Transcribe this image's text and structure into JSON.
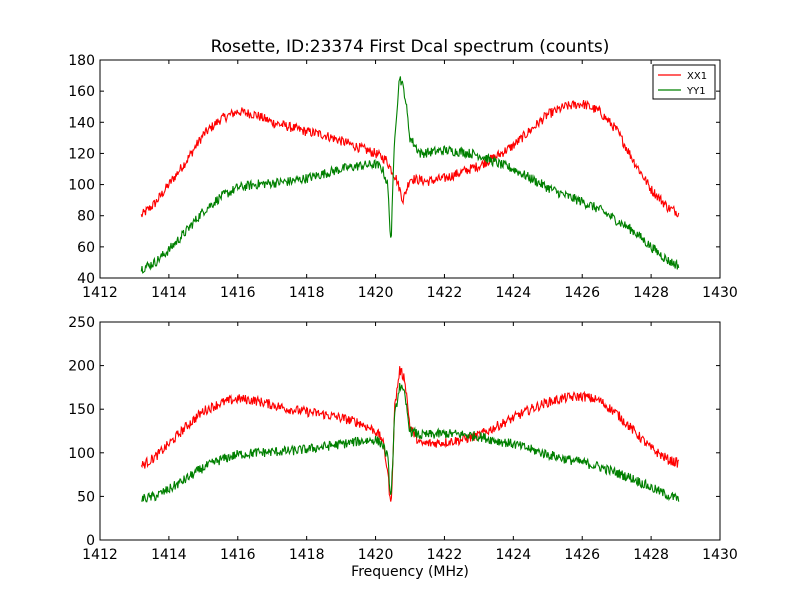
{
  "figure": {
    "title": "Rosette, ID:23374 First Dcal spectrum (counts)",
    "xlabel": "Frequency (MHz)",
    "colors": {
      "XX1": "#ff0000",
      "YY1": "#008000"
    }
  },
  "chart_data": [
    {
      "type": "line",
      "title": "Rosette, ID:23374 First Dcal spectrum (counts)",
      "xlabel": "",
      "ylabel": "",
      "xlim": [
        1412,
        1430
      ],
      "ylim": [
        40,
        180
      ],
      "xticks": [
        1412,
        1414,
        1416,
        1418,
        1420,
        1422,
        1424,
        1426,
        1428,
        1430
      ],
      "yticks": [
        40,
        60,
        80,
        100,
        120,
        140,
        160,
        180
      ],
      "grid": false,
      "legend": {
        "placement": "top-right",
        "entries": [
          "XX1",
          "YY1"
        ]
      },
      "series": [
        {
          "name": "XX1",
          "color": "#ff0000",
          "x": [
            1413.2,
            1413.6,
            1414.0,
            1414.5,
            1415.0,
            1415.5,
            1416.0,
            1416.5,
            1417.0,
            1417.5,
            1418.0,
            1418.5,
            1419.0,
            1419.5,
            1420.0,
            1420.3,
            1420.6,
            1420.8,
            1421.0,
            1421.5,
            1422.0,
            1422.5,
            1423.0,
            1423.5,
            1424.0,
            1424.5,
            1425.0,
            1425.5,
            1426.0,
            1426.5,
            1427.0,
            1427.5,
            1428.0,
            1428.5,
            1428.8
          ],
          "y": [
            80,
            88,
            100,
            115,
            132,
            142,
            147,
            145,
            140,
            137,
            134,
            132,
            128,
            124,
            120,
            116,
            104,
            90,
            104,
            102,
            104,
            108,
            112,
            118,
            125,
            135,
            145,
            150,
            152,
            147,
            135,
            115,
            97,
            85,
            82
          ]
        },
        {
          "name": "YY1",
          "color": "#008000",
          "x": [
            1413.2,
            1413.6,
            1414.0,
            1414.5,
            1415.0,
            1415.5,
            1416.0,
            1416.5,
            1417.0,
            1417.5,
            1418.0,
            1418.5,
            1419.0,
            1419.5,
            1420.0,
            1420.2,
            1420.35,
            1420.45,
            1420.55,
            1420.7,
            1420.85,
            1421.0,
            1421.3,
            1422.0,
            1422.5,
            1423.0,
            1423.5,
            1424.0,
            1424.5,
            1425.0,
            1425.5,
            1426.0,
            1426.5,
            1427.0,
            1427.5,
            1428.0,
            1428.5,
            1428.8
          ],
          "y": [
            46,
            50,
            58,
            70,
            83,
            92,
            98,
            100,
            101,
            102,
            104,
            107,
            110,
            112,
            113,
            110,
            100,
            62,
            130,
            170,
            158,
            130,
            120,
            122,
            121,
            119,
            114,
            110,
            104,
            98,
            93,
            89,
            84,
            77,
            70,
            60,
            51,
            48
          ]
        }
      ]
    },
    {
      "type": "line",
      "title": "",
      "xlabel": "Frequency (MHz)",
      "ylabel": "",
      "xlim": [
        1412,
        1430
      ],
      "ylim": [
        0,
        250
      ],
      "xticks": [
        1412,
        1414,
        1416,
        1418,
        1420,
        1422,
        1424,
        1426,
        1428,
        1430
      ],
      "yticks": [
        0,
        50,
        100,
        150,
        200,
        250
      ],
      "grid": false,
      "series": [
        {
          "name": "XX1",
          "color": "#ff0000",
          "x": [
            1413.2,
            1413.6,
            1414.0,
            1414.5,
            1415.0,
            1415.5,
            1416.0,
            1416.5,
            1417.0,
            1417.5,
            1418.0,
            1418.5,
            1419.0,
            1419.5,
            1420.0,
            1420.2,
            1420.35,
            1420.45,
            1420.55,
            1420.7,
            1420.85,
            1421.0,
            1421.3,
            1422.0,
            1422.5,
            1423.0,
            1423.5,
            1424.0,
            1424.5,
            1425.0,
            1425.5,
            1426.0,
            1426.5,
            1427.0,
            1427.5,
            1428.0,
            1428.5,
            1428.8
          ],
          "y": [
            85,
            95,
            110,
            130,
            148,
            157,
            162,
            160,
            155,
            150,
            147,
            144,
            140,
            135,
            125,
            115,
            80,
            35,
            150,
            195,
            185,
            130,
            110,
            112,
            115,
            120,
            130,
            140,
            150,
            158,
            163,
            165,
            160,
            145,
            125,
            105,
            92,
            88
          ]
        },
        {
          "name": "YY1",
          "color": "#008000",
          "x": [
            1413.2,
            1413.6,
            1414.0,
            1414.5,
            1415.0,
            1415.5,
            1416.0,
            1416.5,
            1417.0,
            1417.5,
            1418.0,
            1418.5,
            1419.0,
            1419.5,
            1420.0,
            1420.2,
            1420.35,
            1420.45,
            1420.55,
            1420.7,
            1420.85,
            1421.0,
            1421.3,
            1422.0,
            1422.5,
            1423.0,
            1423.5,
            1424.0,
            1424.5,
            1425.0,
            1425.5,
            1426.0,
            1426.5,
            1427.0,
            1427.5,
            1428.0,
            1428.5,
            1428.8
          ],
          "y": [
            47,
            50,
            58,
            70,
            83,
            92,
            98,
            100,
            101,
            102,
            104,
            107,
            110,
            113,
            115,
            110,
            95,
            45,
            140,
            178,
            165,
            125,
            120,
            122,
            121,
            119,
            114,
            110,
            104,
            98,
            93,
            89,
            84,
            77,
            70,
            60,
            51,
            47
          ]
        }
      ]
    }
  ]
}
